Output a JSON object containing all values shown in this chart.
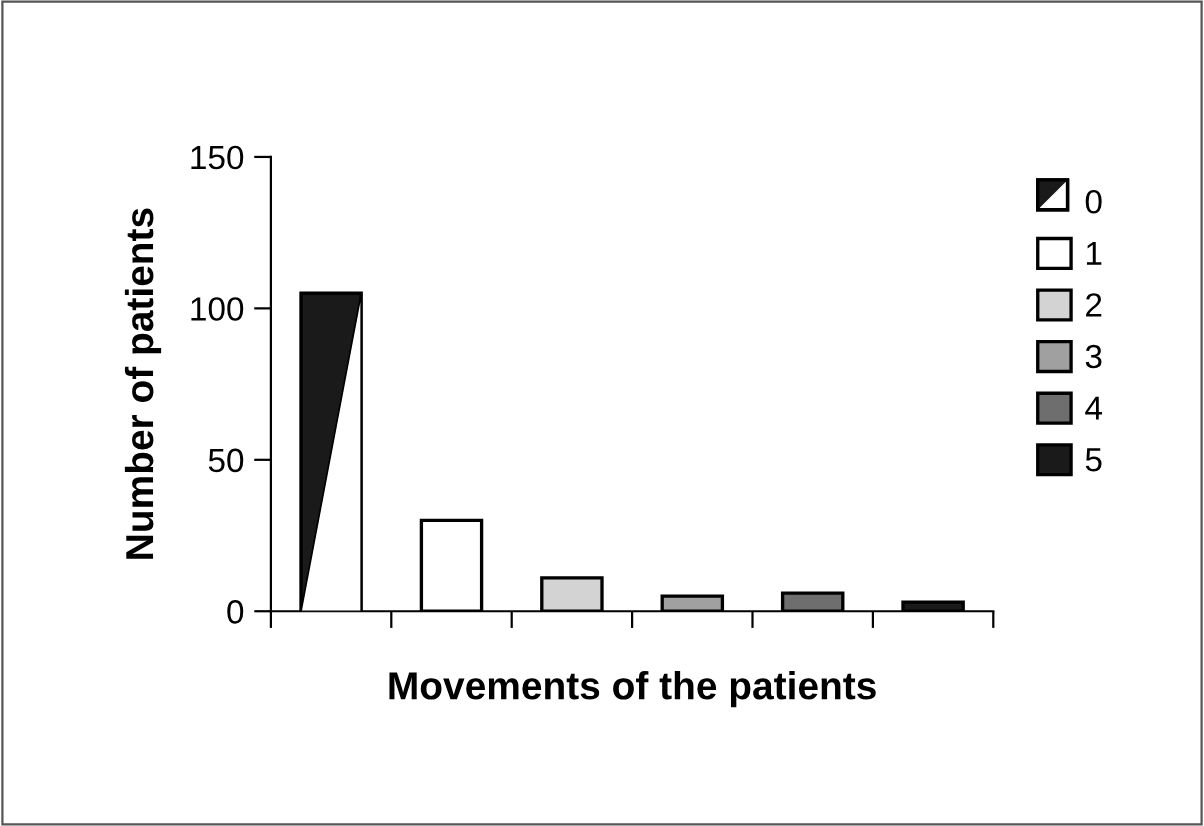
{
  "chart_data": {
    "type": "bar",
    "xlabel": "Movements of the patients",
    "ylabel": "Number of patients",
    "categories": [
      null,
      null,
      null,
      null,
      null,
      null
    ],
    "series": [
      {
        "name": "0",
        "color": "#1a1a1a",
        "values": [
          105,
          null,
          null,
          null,
          null,
          null
        ]
      },
      {
        "name": "1",
        "color": "#ffffff",
        "values": [
          null,
          30,
          null,
          null,
          null,
          null
        ]
      },
      {
        "name": "2",
        "color": "#d3d3d3",
        "values": [
          null,
          null,
          11,
          null,
          null,
          null
        ]
      },
      {
        "name": "3",
        "color": "#a0a0a0",
        "values": [
          null,
          null,
          null,
          5,
          null,
          null
        ]
      },
      {
        "name": "4",
        "color": "#6e6e6e",
        "values": [
          null,
          null,
          null,
          null,
          6,
          null
        ]
      },
      {
        "name": "5",
        "color": "#1a1a1a",
        "values": [
          null,
          null,
          null,
          null,
          null,
          3
        ]
      }
    ],
    "ylim": [
      0,
      150
    ],
    "yticks": [
      0,
      50,
      100,
      150
    ],
    "grid": false,
    "legend": "top right"
  }
}
